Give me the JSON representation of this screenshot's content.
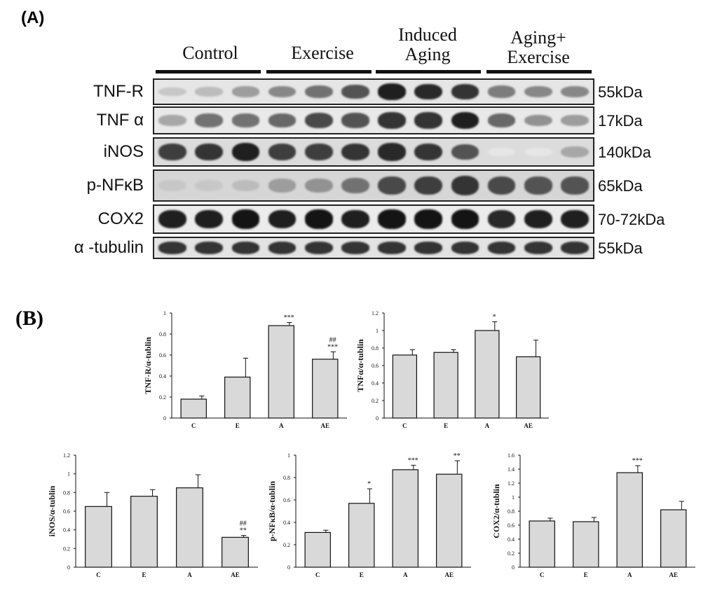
{
  "panelA": {
    "label": "(A)",
    "groups": [
      {
        "name": "Control",
        "lines": [
          "Control"
        ]
      },
      {
        "name": "Exercise",
        "lines": [
          "Exercise"
        ]
      },
      {
        "name": "Induced Aging",
        "lines": [
          "Induced",
          "Aging"
        ]
      },
      {
        "name": "Aging+ Exercise",
        "lines": [
          "Aging+",
          "Exercise"
        ]
      }
    ],
    "blots": [
      {
        "protein": "TNF-R",
        "kda": "55kDa",
        "bg": "#e6e6e6",
        "intensity": [
          0.15,
          0.2,
          0.35,
          0.45,
          0.55,
          0.7,
          0.95,
          0.9,
          0.85,
          0.5,
          0.45,
          0.45
        ]
      },
      {
        "protein": "TNF α",
        "kda": "17kDa",
        "bg": "#e9e9e9",
        "intensity": [
          0.3,
          0.55,
          0.55,
          0.6,
          0.75,
          0.7,
          0.85,
          0.85,
          0.95,
          0.6,
          0.4,
          0.35
        ]
      },
      {
        "protein": "iNOS",
        "kda": "140kDa",
        "bg": "#dcdcdc",
        "intensity": [
          0.8,
          0.85,
          0.95,
          0.8,
          0.8,
          0.85,
          0.9,
          0.85,
          0.7,
          0.0,
          0.0,
          0.3
        ]
      },
      {
        "protein": "p-NFκB",
        "kda": "65kDa",
        "bg": "#d6d6d6",
        "intensity": [
          0.15,
          0.15,
          0.2,
          0.35,
          0.4,
          0.55,
          0.75,
          0.8,
          0.85,
          0.75,
          0.7,
          0.7
        ]
      },
      {
        "protein": "COX2",
        "kda": "70-72kDa",
        "bg": "#ececec",
        "intensity": [
          0.95,
          0.95,
          1.0,
          0.95,
          1.0,
          0.95,
          1.0,
          1.0,
          1.0,
          0.9,
          0.95,
          0.95
        ]
      },
      {
        "protein": "α -tubulin",
        "kda": "55kDa",
        "bg": "#e3e3e3",
        "intensity": [
          0.85,
          0.85,
          0.85,
          0.85,
          0.85,
          0.85,
          0.85,
          0.85,
          0.85,
          0.85,
          0.85,
          0.85
        ]
      }
    ]
  },
  "panelB": {
    "label": "(B)"
  },
  "chart_data": [
    {
      "type": "bar",
      "categories": [
        "C",
        "E",
        "A",
        "AE"
      ],
      "values": [
        0.18,
        0.39,
        0.88,
        0.56
      ],
      "errors": [
        0.03,
        0.18,
        0.03,
        0.07
      ],
      "annotations": [
        [],
        [],
        [
          "***"
        ],
        [
          "##",
          "***"
        ]
      ],
      "ylabel": "TNF-R/α-tublin",
      "ylim": [
        0,
        1
      ],
      "yticks": [
        "0",
        "0.2",
        "0.4",
        "0.6",
        "0.8",
        "1"
      ]
    },
    {
      "type": "bar",
      "categories": [
        "C",
        "E",
        "A",
        "AE"
      ],
      "values": [
        0.72,
        0.75,
        1.0,
        0.7
      ],
      "errors": [
        0.06,
        0.03,
        0.1,
        0.19
      ],
      "annotations": [
        [],
        [],
        [
          "*"
        ],
        []
      ],
      "ylabel": "TNFα/α-tublin",
      "ylim": [
        0,
        1.2
      ],
      "yticks": [
        "0",
        "0.2",
        "0.4",
        "0.6",
        "0.8",
        "1",
        "1.2"
      ]
    },
    {
      "type": "bar",
      "categories": [
        "C",
        "E",
        "A",
        "AE"
      ],
      "values": [
        0.65,
        0.76,
        0.85,
        0.32
      ],
      "errors": [
        0.15,
        0.07,
        0.14,
        0.02
      ],
      "annotations": [
        [],
        [],
        [],
        [
          "##",
          "**"
        ]
      ],
      "ylabel": "iNOS/α-tublin",
      "ylim": [
        0,
        1.2
      ],
      "yticks": [
        "0",
        "0.2",
        "0.4",
        "0.6",
        "0.8",
        "1",
        "1.2"
      ]
    },
    {
      "type": "bar",
      "categories": [
        "C",
        "E",
        "A",
        "AE"
      ],
      "values": [
        0.31,
        0.57,
        0.87,
        0.83
      ],
      "errors": [
        0.02,
        0.13,
        0.04,
        0.12
      ],
      "annotations": [
        [],
        [
          "*"
        ],
        [
          "***"
        ],
        [
          "**"
        ]
      ],
      "ylabel": "p-NFκB/α-tublin",
      "ylim": [
        0,
        1
      ],
      "yticks": [
        "0",
        "0.2",
        "0.4",
        "0.6",
        "0.8",
        "1"
      ]
    },
    {
      "type": "bar",
      "categories": [
        "C",
        "E",
        "A",
        "AE"
      ],
      "values": [
        0.66,
        0.65,
        1.35,
        0.82
      ],
      "errors": [
        0.04,
        0.06,
        0.1,
        0.12
      ],
      "annotations": [
        [],
        [],
        [
          "***"
        ],
        []
      ],
      "ylabel": "COX2/α-tublin",
      "ylim": [
        0,
        1.6
      ],
      "yticks": [
        "0",
        "0.2",
        "0.4",
        "0.6",
        "0.8",
        "1",
        "1.2",
        "1.4",
        "1.6"
      ]
    }
  ]
}
